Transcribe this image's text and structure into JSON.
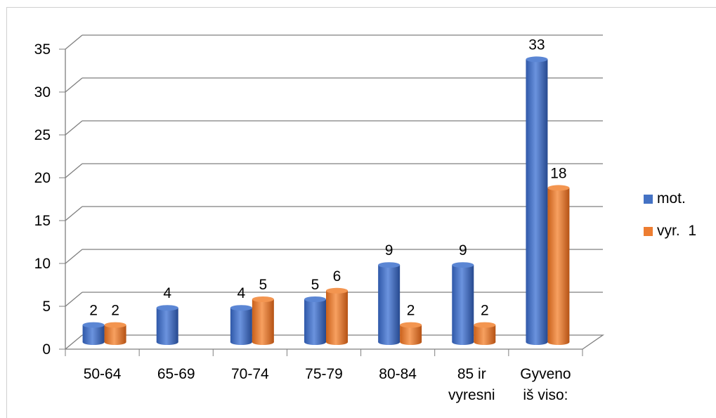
{
  "chart_data": {
    "type": "bar",
    "title": "",
    "xlabel": "",
    "ylabel": "",
    "categories": [
      "50-64",
      "65-69",
      "70-74",
      "75-79",
      "80-84",
      "85 ir\nvyresni",
      "Gyveno\niš viso:"
    ],
    "series": [
      {
        "name": "mot.",
        "color": "#4472C4",
        "values": [
          2,
          4,
          4,
          5,
          9,
          9,
          33
        ]
      },
      {
        "name": "vyr.  1",
        "color": "#ED7D31",
        "values": [
          2,
          null,
          5,
          6,
          2,
          2,
          18
        ]
      }
    ],
    "ylim": [
      0,
      35
    ],
    "yticks": [
      0,
      5,
      10,
      15,
      20,
      25,
      30,
      35
    ],
    "grid": true,
    "legend": "right",
    "style": "3d-cylinder"
  }
}
